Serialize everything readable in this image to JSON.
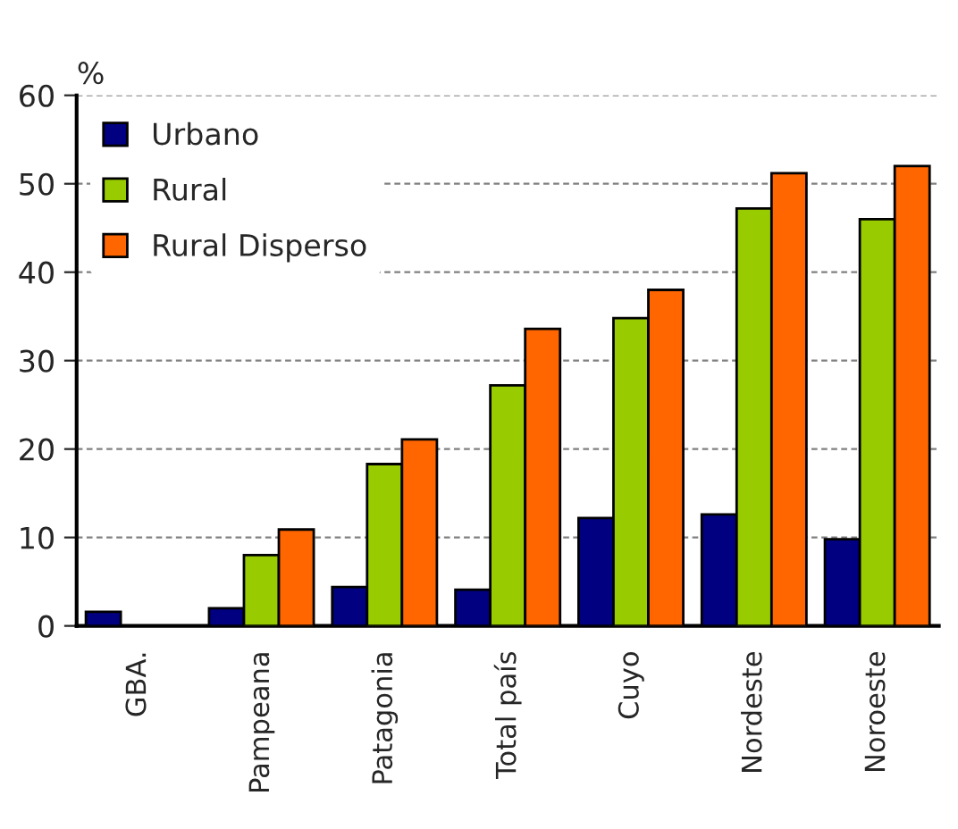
{
  "chart_data": {
    "type": "bar",
    "ylabel": "%",
    "categories": [
      "GBA.",
      "Pampeana",
      "Patagonia",
      "Total país",
      "Cuyo",
      "Nordeste",
      "Noroeste"
    ],
    "series": [
      {
        "name": "Urbano",
        "color": "#000080",
        "values": [
          1.6,
          2.0,
          4.4,
          4.1,
          12.2,
          12.6,
          9.8
        ]
      },
      {
        "name": "Rural",
        "color": "#99cc00",
        "values": [
          null,
          8.0,
          18.3,
          27.2,
          34.8,
          47.2,
          46.0
        ]
      },
      {
        "name": "Rural Disperso",
        "color": "#ff6600",
        "values": [
          null,
          10.9,
          21.1,
          33.6,
          38.0,
          51.2,
          52.0
        ]
      }
    ],
    "ylim": [
      0,
      60
    ],
    "yticks": [
      0,
      10,
      20,
      30,
      40,
      50,
      60
    ],
    "grid": "y",
    "legend": "top left"
  }
}
